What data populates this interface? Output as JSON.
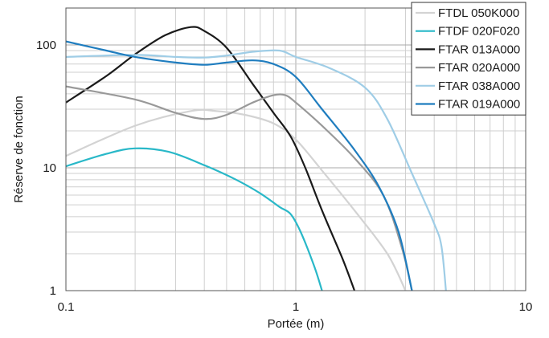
{
  "chart_data": {
    "type": "line",
    "title": "",
    "xlabel": "Portée (m)",
    "ylabel": "Réserve de fonction",
    "xscale": "log",
    "yscale": "log",
    "xlim": [
      0.1,
      10
    ],
    "ylim": [
      1,
      200
    ],
    "grid": true,
    "legend_position": "top-right",
    "xticks": [
      {
        "value": 0.1,
        "label": "0.1"
      },
      {
        "value": 1,
        "label": "1"
      },
      {
        "value": 10,
        "label": "10"
      }
    ],
    "yticks": [
      {
        "value": 1,
        "label": "1"
      },
      {
        "value": 10,
        "label": "10"
      },
      {
        "value": 100,
        "label": "100"
      }
    ],
    "series": [
      {
        "name": "FTDL 050K000",
        "color": "#d3d3d3",
        "points": [
          [
            0.1,
            12.5
          ],
          [
            0.2,
            22
          ],
          [
            0.35,
            29
          ],
          [
            0.45,
            29
          ],
          [
            0.6,
            27
          ],
          [
            0.8,
            23
          ],
          [
            1.0,
            17
          ],
          [
            1.3,
            9.5
          ],
          [
            1.8,
            4.5
          ],
          [
            2.5,
            2.0
          ],
          [
            3.0,
            1.0
          ]
        ]
      },
      {
        "name": "FTDF 020F020",
        "color": "#29b8c8",
        "points": [
          [
            0.1,
            10.3
          ],
          [
            0.15,
            13
          ],
          [
            0.2,
            14.4
          ],
          [
            0.28,
            13.5
          ],
          [
            0.4,
            10.5
          ],
          [
            0.55,
            8.0
          ],
          [
            0.7,
            6.2
          ],
          [
            0.85,
            4.8
          ],
          [
            0.95,
            4.2
          ],
          [
            1.05,
            3.0
          ],
          [
            1.2,
            1.6
          ],
          [
            1.3,
            1.0
          ]
        ]
      },
      {
        "name": "FTAR 013A000",
        "color": "#1a1a1a",
        "points": [
          [
            0.1,
            34
          ],
          [
            0.15,
            56
          ],
          [
            0.2,
            84
          ],
          [
            0.27,
            120
          ],
          [
            0.35,
            140
          ],
          [
            0.4,
            130
          ],
          [
            0.5,
            95
          ],
          [
            0.65,
            48
          ],
          [
            0.8,
            28
          ],
          [
            0.95,
            18
          ],
          [
            1.1,
            10
          ],
          [
            1.3,
            4.5
          ],
          [
            1.6,
            1.8
          ],
          [
            1.8,
            1.0
          ]
        ]
      },
      {
        "name": "FTAR 020A000",
        "color": "#999999",
        "points": [
          [
            0.1,
            46
          ],
          [
            0.2,
            36
          ],
          [
            0.3,
            28
          ],
          [
            0.4,
            25
          ],
          [
            0.5,
            27
          ],
          [
            0.65,
            34
          ],
          [
            0.8,
            39
          ],
          [
            0.9,
            39
          ],
          [
            1.0,
            34
          ],
          [
            1.3,
            22
          ],
          [
            1.8,
            12
          ],
          [
            2.4,
            6
          ],
          [
            2.9,
            2.2
          ],
          [
            3.2,
            1.0
          ]
        ]
      },
      {
        "name": "FTAR 038A000",
        "color": "#9fcde6",
        "points": [
          [
            0.1,
            80
          ],
          [
            0.2,
            83
          ],
          [
            0.3,
            80
          ],
          [
            0.4,
            79
          ],
          [
            0.5,
            82
          ],
          [
            0.65,
            88
          ],
          [
            0.85,
            90
          ],
          [
            1.0,
            80
          ],
          [
            1.4,
            65
          ],
          [
            2.0,
            45
          ],
          [
            2.5,
            25
          ],
          [
            3.2,
            9
          ],
          [
            4.0,
            3.5
          ],
          [
            4.3,
            2.3
          ],
          [
            4.5,
            1.0
          ]
        ]
      },
      {
        "name": "FTAR 019A000",
        "color": "#1f7dbf",
        "points": [
          [
            0.1,
            107
          ],
          [
            0.15,
            90
          ],
          [
            0.2,
            80
          ],
          [
            0.3,
            72
          ],
          [
            0.4,
            69
          ],
          [
            0.5,
            72
          ],
          [
            0.65,
            75
          ],
          [
            0.8,
            70
          ],
          [
            1.0,
            55
          ],
          [
            1.3,
            30
          ],
          [
            1.8,
            14
          ],
          [
            2.3,
            7
          ],
          [
            2.8,
            3
          ],
          [
            3.2,
            1.0
          ]
        ]
      }
    ]
  }
}
